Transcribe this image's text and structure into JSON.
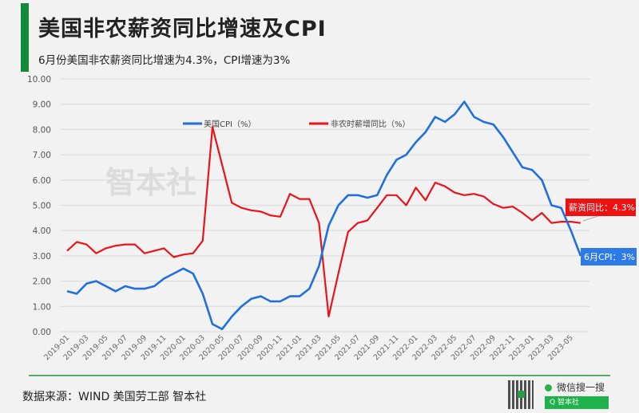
{
  "header": {
    "title": "美国非农薪资同比增速及CPI",
    "subtitle": "6月份美国非农薪资同比增速为4.3%，CPI增速为3%"
  },
  "watermark": "智本社",
  "legend": {
    "cpi_label": "美国CPI（%）",
    "wage_label": "非农时薪增同比（%）"
  },
  "callouts": {
    "wage": "薪资同比：4.3%",
    "cpi": "6月CPI：3%"
  },
  "footer": {
    "source": "数据来源：WIND  美国劳工部 智本社",
    "wechat_label": "微信搜一搜",
    "search_label": "Q 智本社"
  },
  "colors": {
    "cpi": "#1f6fdc",
    "wage": "#e8141b",
    "accent": "#138a3b",
    "grid": "#dddddd"
  },
  "chart_data": {
    "type": "line",
    "title": "美国非农薪资同比增速及CPI",
    "subtitle": "6月份美国非农薪资同比增速为4.3%，CPI增速为3%",
    "xlabel": "",
    "ylabel": "",
    "ylim": [
      0,
      10
    ],
    "yticks": [
      "0.00",
      "1.00",
      "2.00",
      "3.00",
      "4.00",
      "5.00",
      "6.00",
      "7.00",
      "8.00",
      "9.00",
      "10.00"
    ],
    "grid": true,
    "legend_position": "top",
    "x": [
      "2019-01",
      "2019-02",
      "2019-03",
      "2019-04",
      "2019-05",
      "2019-06",
      "2019-07",
      "2019-08",
      "2019-09",
      "2019-10",
      "2019-11",
      "2019-12",
      "2020-01",
      "2020-02",
      "2020-03",
      "2020-04",
      "2020-05",
      "2020-06",
      "2020-07",
      "2020-08",
      "2020-09",
      "2020-10",
      "2020-11",
      "2020-12",
      "2021-01",
      "2021-02",
      "2021-03",
      "2021-04",
      "2021-05",
      "2021-06",
      "2021-07",
      "2021-08",
      "2021-09",
      "2021-10",
      "2021-11",
      "2021-12",
      "2022-01",
      "2022-02",
      "2022-03",
      "2022-04",
      "2022-05",
      "2022-06",
      "2022-07",
      "2022-08",
      "2022-09",
      "2022-10",
      "2022-11",
      "2022-12",
      "2023-01",
      "2023-02",
      "2023-03",
      "2023-04",
      "2023-05",
      "2023-06"
    ],
    "xtick_labels": [
      "2019-01",
      "2019-03",
      "2019-05",
      "2019-07",
      "2019-09",
      "2019-11",
      "2020-01",
      "2020-03",
      "2020-05",
      "2020-07",
      "2020-09",
      "2020-11",
      "2021-01",
      "2021-03",
      "2021-05",
      "2021-07",
      "2021-09",
      "2021-11",
      "2022-01",
      "2022-03",
      "2022-05",
      "2022-07",
      "2022-09",
      "2022-11",
      "2023-01",
      "2023-03",
      "2023-05"
    ],
    "series": [
      {
        "name": "美国CPI（%）",
        "color": "#1f6fdc",
        "values": [
          1.6,
          1.5,
          1.9,
          2.0,
          1.8,
          1.6,
          1.8,
          1.7,
          1.7,
          1.8,
          2.1,
          2.3,
          2.5,
          2.3,
          1.5,
          0.3,
          0.1,
          0.6,
          1.0,
          1.3,
          1.4,
          1.2,
          1.2,
          1.4,
          1.4,
          1.7,
          2.6,
          4.2,
          5.0,
          5.4,
          5.4,
          5.3,
          5.4,
          6.2,
          6.8,
          7.0,
          7.5,
          7.9,
          8.5,
          8.3,
          8.6,
          9.1,
          8.5,
          8.3,
          8.2,
          7.7,
          7.1,
          6.5,
          6.4,
          6.0,
          5.0,
          4.9,
          4.0,
          3.0
        ]
      },
      {
        "name": "非农时薪增同比（%）",
        "color": "#e8141b",
        "values": [
          3.2,
          3.55,
          3.45,
          3.1,
          3.3,
          3.4,
          3.45,
          3.45,
          3.1,
          3.2,
          3.3,
          2.95,
          3.05,
          3.1,
          3.6,
          8.1,
          6.6,
          5.1,
          4.9,
          4.8,
          4.75,
          4.6,
          4.55,
          5.45,
          5.25,
          5.25,
          4.3,
          0.6,
          2.3,
          3.95,
          4.3,
          4.4,
          4.9,
          5.4,
          5.4,
          5.0,
          5.7,
          5.2,
          5.9,
          5.75,
          5.5,
          5.4,
          5.45,
          5.35,
          5.05,
          4.9,
          4.95,
          4.7,
          4.4,
          4.7,
          4.3,
          4.35,
          4.35,
          4.3
        ]
      }
    ],
    "annotations": [
      {
        "text": "薪资同比：4.3%",
        "series": "非农时薪增同比（%）",
        "x": "2023-06",
        "y": 4.3
      },
      {
        "text": "6月CPI：3%",
        "series": "美国CPI（%）",
        "x": "2023-06",
        "y": 3.0
      }
    ]
  }
}
